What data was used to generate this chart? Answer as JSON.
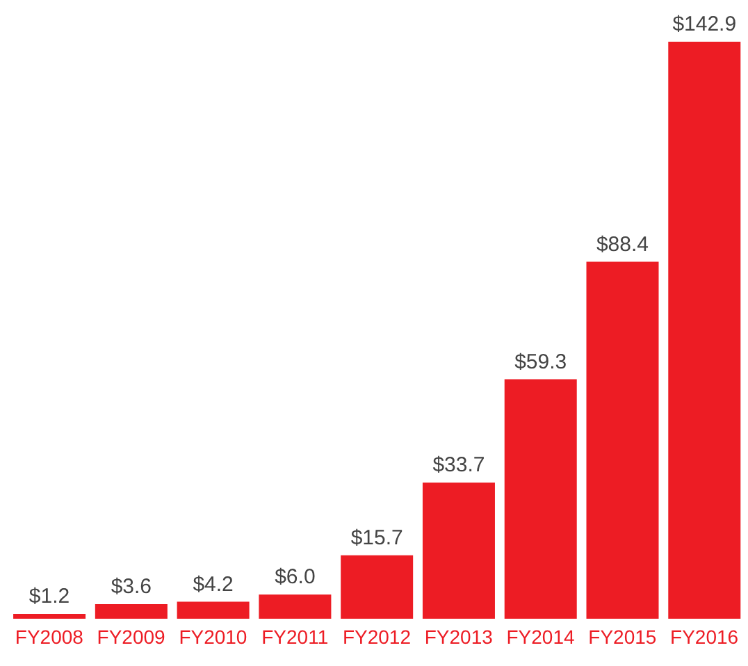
{
  "chart_data": {
    "type": "bar",
    "categories": [
      "FY2008",
      "FY2009",
      "FY2010",
      "FY2011",
      "FY2012",
      "FY2013",
      "FY2014",
      "FY2015",
      "FY2016"
    ],
    "values": [
      1.2,
      3.6,
      4.2,
      6.0,
      15.7,
      33.7,
      59.3,
      88.4,
      142.9
    ],
    "value_labels": [
      "$1.2",
      "$3.6",
      "$4.2",
      "$6.0",
      "$15.7",
      "$33.7",
      "$59.3",
      "$88.4",
      "$142.9"
    ],
    "color": "#ed1c24",
    "grid": false,
    "legend": false
  }
}
